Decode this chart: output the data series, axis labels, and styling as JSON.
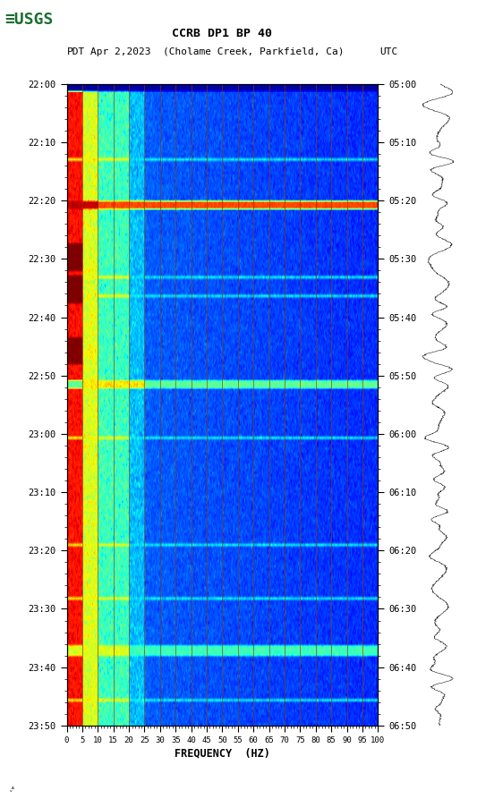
{
  "title_line1": "CCRB DP1 BP 40",
  "title_line2_left": "PDT",
  "title_line2_mid": "Apr 2,2023  (Cholame Creek, Parkfield, Ca)",
  "title_line2_right": "UTC",
  "xlabel": "FREQUENCY  (HZ)",
  "xticks": [
    0,
    5,
    10,
    15,
    20,
    25,
    30,
    35,
    40,
    45,
    50,
    55,
    60,
    65,
    70,
    75,
    80,
    85,
    90,
    95,
    100
  ],
  "left_yticks": [
    "22:00",
    "22:10",
    "22:20",
    "22:30",
    "22:40",
    "22:50",
    "23:00",
    "23:10",
    "23:20",
    "23:30",
    "23:40",
    "23:50"
  ],
  "right_yticks": [
    "05:00",
    "05:10",
    "05:20",
    "05:30",
    "05:40",
    "05:50",
    "06:00",
    "06:10",
    "06:20",
    "06:30",
    "06:40",
    "06:50"
  ],
  "background_color": "#ffffff",
  "logo_color": "#1a6e2e",
  "vertical_line_color": "#8b3a00",
  "vertical_line_freq": [
    5,
    10,
    15,
    20,
    25,
    30,
    35,
    40,
    45,
    50,
    55,
    60,
    65,
    70,
    75,
    80,
    85,
    90,
    95
  ],
  "figsize": [
    5.52,
    8.93
  ],
  "dpi": 100,
  "n_time": 240,
  "n_freq": 500
}
